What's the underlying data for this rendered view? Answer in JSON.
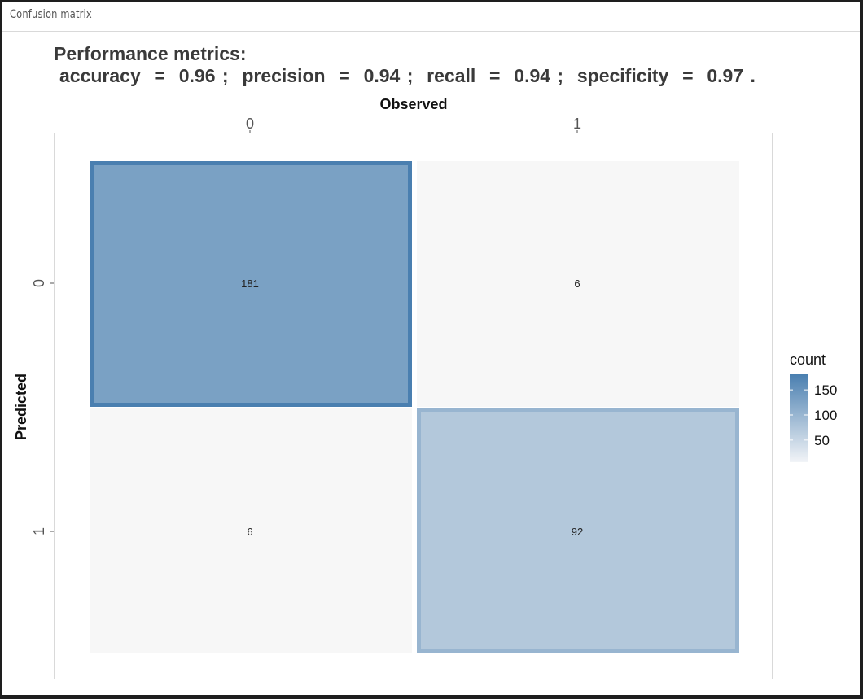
{
  "panel": {
    "title": "Confusion matrix"
  },
  "metrics": {
    "heading": "Performance metrics:",
    "line": "accuracy  =  0.96 ;  precision  =  0.94 ;  recall  =  0.94 ;  specificity  =  0.97 ."
  },
  "chart_data": {
    "type": "heatmap",
    "xlabel": "Observed",
    "ylabel": "Predicted",
    "x_categories": [
      "0",
      "1"
    ],
    "y_categories": [
      "0",
      "1"
    ],
    "values": [
      [
        181,
        6
      ],
      [
        6,
        92
      ]
    ],
    "legend": {
      "title": "count",
      "ticks": [
        "150",
        "100",
        "50"
      ],
      "placement": "right"
    },
    "colors": {
      "high": "#4a7fb0",
      "low": "#f7f7f7"
    }
  }
}
